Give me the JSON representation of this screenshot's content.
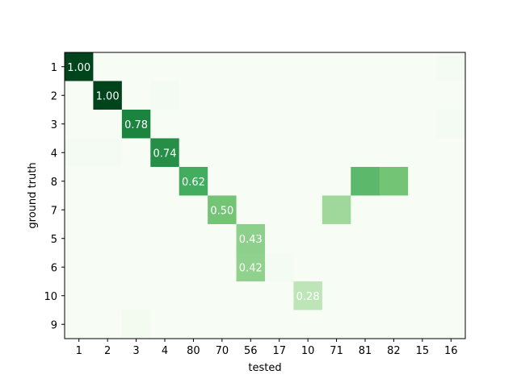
{
  "chart_data": {
    "type": "heatmap",
    "xlabel": "tested",
    "ylabel": "ground truth",
    "x_categories": [
      "1",
      "2",
      "3",
      "4",
      "80",
      "70",
      "56",
      "17",
      "10",
      "71",
      "81",
      "82",
      "15",
      "16"
    ],
    "y_categories": [
      "1",
      "2",
      "3",
      "4",
      "8",
      "7",
      "5",
      "6",
      "10",
      "9"
    ],
    "colormap": "Greens",
    "value_range": [
      0,
      1
    ],
    "matrix": [
      [
        1.0,
        0,
        0,
        0,
        0,
        0,
        0,
        0,
        0,
        0,
        0,
        0,
        0,
        0.02
      ],
      [
        0,
        1.0,
        0,
        0.02,
        0,
        0,
        0,
        0,
        0,
        0,
        0,
        0,
        0,
        0
      ],
      [
        0,
        0,
        0.78,
        0,
        0,
        0,
        0,
        0,
        0,
        0,
        0,
        0,
        0,
        0.02
      ],
      [
        0.02,
        0.02,
        0,
        0.74,
        0,
        0,
        0,
        0,
        0,
        0,
        0,
        0,
        0,
        0
      ],
      [
        0,
        0,
        0,
        0,
        0.62,
        0,
        0,
        0,
        0,
        0,
        0.56,
        0.5,
        0,
        0
      ],
      [
        0,
        0,
        0,
        0,
        0,
        0.5,
        0,
        0,
        0,
        0.38,
        0,
        0,
        0,
        0
      ],
      [
        0,
        0,
        0,
        0,
        0,
        0,
        0.43,
        0,
        0,
        0,
        0,
        0,
        0,
        0
      ],
      [
        0,
        0,
        0,
        0,
        0,
        0,
        0.42,
        0.02,
        0,
        0,
        0,
        0,
        0,
        0
      ],
      [
        0,
        0,
        0,
        0,
        0,
        0,
        0,
        0,
        0.28,
        0,
        0,
        0,
        0,
        0
      ],
      [
        0,
        0,
        0.03,
        0,
        0,
        0,
        0,
        0,
        0,
        0,
        0,
        0,
        0,
        0
      ]
    ],
    "annotations": [
      {
        "row": 0,
        "col": 0,
        "text": "1.00"
      },
      {
        "row": 1,
        "col": 1,
        "text": "1.00"
      },
      {
        "row": 2,
        "col": 2,
        "text": "0.78"
      },
      {
        "row": 3,
        "col": 3,
        "text": "0.74"
      },
      {
        "row": 4,
        "col": 4,
        "text": "0.62"
      },
      {
        "row": 5,
        "col": 5,
        "text": "0.50"
      },
      {
        "row": 6,
        "col": 6,
        "text": "0.43"
      },
      {
        "row": 7,
        "col": 6,
        "text": "0.42"
      },
      {
        "row": 8,
        "col": 8,
        "text": "0.28"
      }
    ]
  }
}
